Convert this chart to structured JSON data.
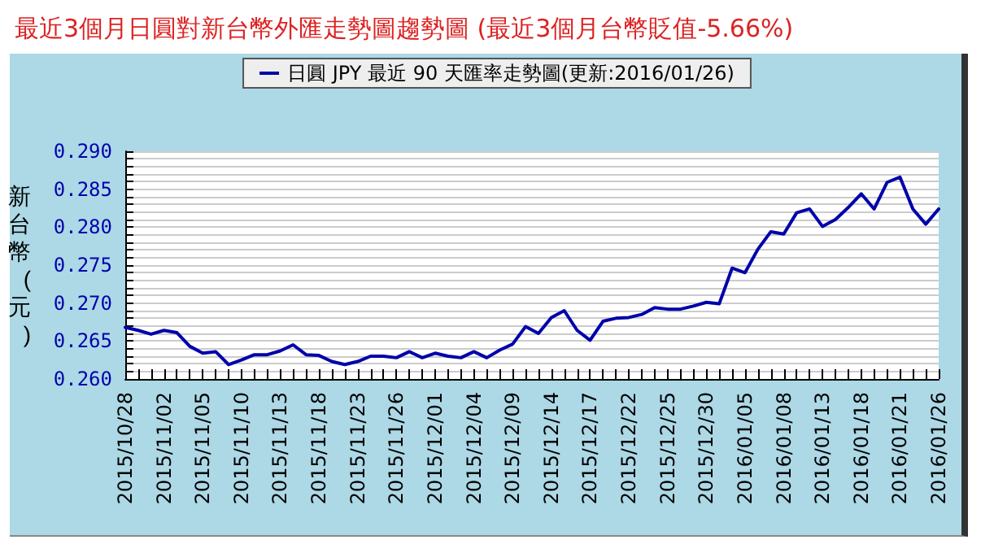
{
  "chart_data": {
    "type": "line",
    "title": "最近3個月日圓對新台幣外匯走勢圖趨勢圖 (最近3個月台幣貶值-5.66%)",
    "ylabel": "新台幣(元)",
    "categories": [
      "2015/10/28",
      null,
      null,
      "2015/11/02",
      null,
      null,
      "2015/11/05",
      null,
      null,
      "2015/11/10",
      null,
      null,
      "2015/11/13",
      null,
      null,
      "2015/11/18",
      null,
      null,
      "2015/11/23",
      null,
      null,
      "2015/11/26",
      null,
      null,
      "2015/12/01",
      null,
      null,
      "2015/12/04",
      null,
      null,
      "2015/12/09",
      null,
      null,
      "2015/12/14",
      null,
      null,
      "2015/12/17",
      null,
      null,
      "2015/12/22",
      null,
      null,
      "2015/12/25",
      null,
      null,
      "2015/12/30",
      null,
      null,
      "2016/01/05",
      null,
      null,
      "2016/01/08",
      null,
      null,
      "2016/01/13",
      null,
      null,
      "2016/01/18",
      null,
      null,
      "2016/01/21",
      null,
      null,
      "2016/01/26"
    ],
    "series": [
      {
        "name": "日圓 JPY 最近 90 天匯率走勢圖(更新:2016/01/26)",
        "color": "#0000aa",
        "values": [
          0.2668,
          0.2664,
          0.2659,
          0.2664,
          0.2661,
          0.2643,
          0.2634,
          0.2636,
          0.2619,
          0.2625,
          0.2632,
          0.2632,
          0.2637,
          0.2645,
          0.2632,
          0.2631,
          0.2623,
          0.2619,
          0.2623,
          0.263,
          0.263,
          0.2628,
          0.2636,
          0.2628,
          0.2634,
          0.263,
          0.2628,
          0.2636,
          0.2628,
          0.2638,
          0.2646,
          0.2669,
          0.266,
          0.2681,
          0.269,
          0.2664,
          0.2651,
          0.2676,
          0.268,
          0.2681,
          0.2685,
          0.2694,
          0.2692,
          0.2692,
          0.2696,
          0.2701,
          0.2699,
          0.2746,
          0.274,
          0.2771,
          0.2794,
          0.2791,
          0.2819,
          0.2824,
          0.2801,
          0.281,
          0.2826,
          0.2844,
          0.2824,
          0.2859,
          0.2866,
          0.2824,
          0.2804,
          0.2824
        ]
      }
    ],
    "ylim": [
      0.26,
      0.29
    ],
    "yticks": [
      {
        "value": 0.26,
        "label": "0.260"
      },
      {
        "value": 0.261,
        "label": null
      },
      {
        "value": 0.262,
        "label": null
      },
      {
        "value": 0.263,
        "label": null
      },
      {
        "value": 0.264,
        "label": null
      },
      {
        "value": 0.265,
        "label": "0.265"
      },
      {
        "value": 0.266,
        "label": null
      },
      {
        "value": 0.267,
        "label": null
      },
      {
        "value": 0.268,
        "label": null
      },
      {
        "value": 0.269,
        "label": null
      },
      {
        "value": 0.27,
        "label": "0.270"
      },
      {
        "value": 0.271,
        "label": null
      },
      {
        "value": 0.272,
        "label": null
      },
      {
        "value": 0.273,
        "label": null
      },
      {
        "value": 0.274,
        "label": null
      },
      {
        "value": 0.275,
        "label": "0.275"
      },
      {
        "value": 0.276,
        "label": null
      },
      {
        "value": 0.277,
        "label": null
      },
      {
        "value": 0.278,
        "label": null
      },
      {
        "value": 0.279,
        "label": null
      },
      {
        "value": 0.28,
        "label": "0.280"
      },
      {
        "value": 0.281,
        "label": null
      },
      {
        "value": 0.282,
        "label": null
      },
      {
        "value": 0.283,
        "label": null
      },
      {
        "value": 0.284,
        "label": null
      },
      {
        "value": 0.285,
        "label": "0.285"
      },
      {
        "value": 0.286,
        "label": null
      },
      {
        "value": 0.287,
        "label": null
      },
      {
        "value": 0.288,
        "label": null
      },
      {
        "value": 0.289,
        "label": null
      },
      {
        "value": 0.29,
        "label": "0.290"
      }
    ],
    "grid": "y",
    "legend": "top",
    "marker": "none",
    "line_style": "solid"
  }
}
